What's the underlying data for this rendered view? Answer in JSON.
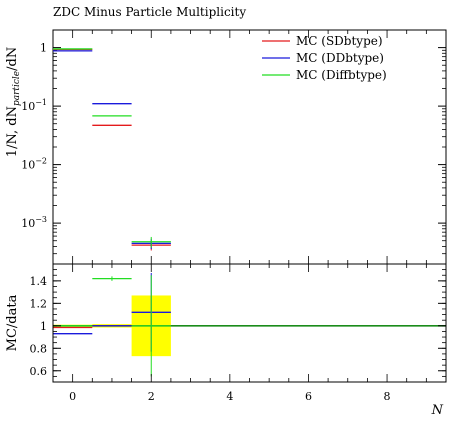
{
  "chart_data": {
    "type": "line",
    "title": "ZDC Minus Particle Multiplicity",
    "xlabel": "N",
    "xlim": [
      -0.5,
      9.5
    ],
    "x_ticks": [
      "0",
      "2",
      "4",
      "6",
      "8"
    ],
    "legend_position": "top-right",
    "main": {
      "ylabel": "1/N, dN_particle/dN",
      "ylabel_main": "1/N, dN",
      "ylabel_sub": "particle",
      "ylabel_tail": "/dN",
      "yscale": "log",
      "ylim": [
        0.0002,
        2.0
      ],
      "y_ticks": [
        {
          "value": 1,
          "label": "1",
          "mant": "1",
          "exp": ""
        },
        {
          "value": 0.1,
          "label": "10^-1",
          "mant": "10",
          "exp": "−1"
        },
        {
          "value": 0.01,
          "label": "10^-2",
          "mant": "10",
          "exp": "−2"
        },
        {
          "value": 0.001,
          "label": "10^-3",
          "mant": "10",
          "exp": "−3"
        }
      ],
      "series": [
        {
          "name": "MC (SDbtype)",
          "color": "#e41a1c",
          "points": [
            {
              "x0": -0.5,
              "x1": 0.5,
              "y": 0.93
            },
            {
              "x0": 0.5,
              "x1": 1.5,
              "y": 0.047
            },
            {
              "x0": 1.5,
              "x1": 2.5,
              "y": 0.00042,
              "err": 8e-05
            }
          ]
        },
        {
          "name": "MC (DDbtype)",
          "color": "#1a1adc",
          "points": [
            {
              "x0": -0.5,
              "x1": 0.5,
              "y": 0.88
            },
            {
              "x0": 0.5,
              "x1": 1.5,
              "y": 0.11
            },
            {
              "x0": 1.5,
              "x1": 2.5,
              "y": 0.00045,
              "err": 9e-05
            }
          ]
        },
        {
          "name": "MC (Diffbtype)",
          "color": "#22dd22",
          "points": [
            {
              "x0": -0.5,
              "x1": 0.5,
              "y": 0.95
            },
            {
              "x0": 0.5,
              "x1": 1.5,
              "y": 0.068
            },
            {
              "x0": 1.5,
              "x1": 2.5,
              "y": 0.00048,
              "err": 0.0001
            }
          ]
        }
      ]
    },
    "ratio": {
      "ylabel": "MC/data",
      "ylim": [
        0.5,
        1.55
      ],
      "y_ticks": [
        {
          "value": 0.6,
          "label": "0.6"
        },
        {
          "value": 0.8,
          "label": "0.8"
        },
        {
          "value": 1.0,
          "label": "1"
        },
        {
          "value": 1.2,
          "label": "1.2"
        },
        {
          "value": 1.4,
          "label": "1.4"
        }
      ],
      "reference_line": {
        "y": 1.0,
        "color": "#1a8c1a"
      },
      "uncertainty_band": {
        "color": "#ffff00",
        "bins": [
          {
            "x0": -0.5,
            "x1": 0.5,
            "lo": 0.99,
            "hi": 1.01
          },
          {
            "x0": 0.5,
            "x1": 1.5,
            "lo": 0.985,
            "hi": 1.015
          },
          {
            "x0": 1.5,
            "x1": 2.5,
            "lo": 0.73,
            "hi": 1.27
          }
        ]
      },
      "series": [
        {
          "name": "MC (SDbtype)",
          "color": "#e41a1c",
          "points": [
            {
              "x0": -0.5,
              "x1": 0.5,
              "y": 0.985
            },
            {
              "x0": 0.5,
              "x1": 1.5,
              "y": 1.0
            },
            {
              "x0": 1.5,
              "x1": 2.5,
              "y": 1.0
            }
          ]
        },
        {
          "name": "MC (DDbtype)",
          "color": "#1a1adc",
          "points": [
            {
              "x0": -0.5,
              "x1": 0.5,
              "y": 0.93
            },
            {
              "x0": 0.5,
              "x1": 1.5,
              "y": 1.0
            },
            {
              "x0": 1.5,
              "x1": 2.5,
              "y": 1.12,
              "err": 0.35
            }
          ]
        },
        {
          "name": "MC (Diffbtype)",
          "color": "#22dd22",
          "points": [
            {
              "x0": -0.5,
              "x1": 0.5,
              "y": 1.0
            },
            {
              "x0": 0.5,
              "x1": 1.5,
              "y": 1.42,
              "err": 0.02
            },
            {
              "x0": 1.5,
              "x1": 2.5,
              "y": 1.0,
              "err": 0.45
            }
          ]
        }
      ]
    }
  }
}
